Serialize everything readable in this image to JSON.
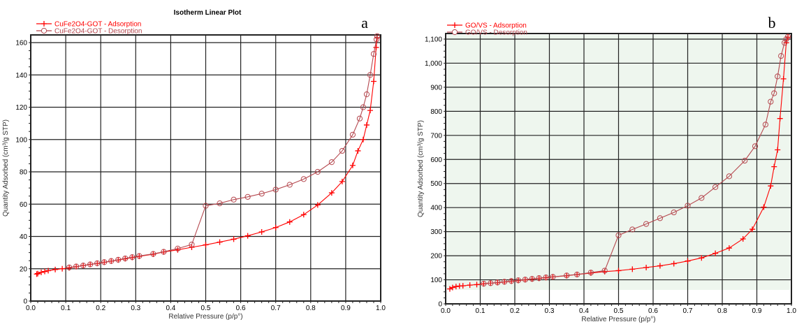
{
  "chart_data": [
    {
      "type": "line",
      "panel_label": "a",
      "title": "Isotherm Linear Plot",
      "xlabel": "Relative Pressure (p/p°)",
      "ylabel": "Quantity Adsorbed (cm³/g STP)",
      "xlim": [
        0,
        1.0
      ],
      "ylim": [
        0,
        165
      ],
      "xticks": [
        0,
        0.1,
        0.2,
        0.3,
        0.4,
        0.5,
        0.6,
        0.7,
        0.8,
        0.9,
        1.0
      ],
      "xtick_labels": [
        "0.0",
        "0.1",
        "0.2",
        "0.3",
        "0.4",
        "0.5",
        "0.6",
        "0.7",
        "0.8",
        "0.9",
        "1.0"
      ],
      "yticks": [
        0,
        20,
        40,
        60,
        80,
        100,
        120,
        140,
        160
      ],
      "ytick_labels": [
        "0",
        "20",
        "40",
        "60",
        "80",
        "100",
        "120",
        "140",
        "160"
      ],
      "grid": true,
      "background": "#ffffff",
      "legend_position": "top-left",
      "series": [
        {
          "name": "CuFe2O4-GOT - Adsorption",
          "marker": "plus",
          "color": "#ff0000",
          "x": [
            0.017,
            0.02,
            0.03,
            0.04,
            0.05,
            0.07,
            0.09,
            0.11,
            0.13,
            0.15,
            0.17,
            0.19,
            0.21,
            0.23,
            0.25,
            0.27,
            0.29,
            0.31,
            0.35,
            0.38,
            0.42,
            0.46,
            0.5,
            0.54,
            0.58,
            0.62,
            0.66,
            0.7,
            0.74,
            0.78,
            0.82,
            0.86,
            0.89,
            0.92,
            0.935,
            0.95,
            0.96,
            0.97,
            0.98,
            0.987,
            0.99
          ],
          "y": [
            16.7,
            17,
            17.8,
            18.3,
            18.8,
            19.5,
            20,
            20.6,
            21.3,
            22,
            22.7,
            23.3,
            24,
            24.7,
            25.4,
            26.2,
            27,
            27.7,
            29,
            30.4,
            31.7,
            33.3,
            34.8,
            36.5,
            38.3,
            40.4,
            42.8,
            45.5,
            49,
            53.5,
            59.5,
            67,
            74,
            84,
            93,
            100,
            109,
            118,
            136,
            157,
            163
          ]
        },
        {
          "name": "CuFe2O4-GOT - Desorption",
          "marker": "circle",
          "color": "#b5484f",
          "x": [
            0.99,
            0.988,
            0.98,
            0.97,
            0.96,
            0.95,
            0.94,
            0.92,
            0.89,
            0.86,
            0.82,
            0.78,
            0.74,
            0.7,
            0.66,
            0.62,
            0.58,
            0.54,
            0.5,
            0.46,
            0.42,
            0.38,
            0.35,
            0.31,
            0.29,
            0.27,
            0.25,
            0.23,
            0.21,
            0.19,
            0.17,
            0.15,
            0.13,
            0.11
          ],
          "y": [
            164,
            162,
            153,
            140,
            128,
            120,
            113,
            103,
            93,
            86,
            80,
            75.5,
            72,
            69,
            66.5,
            64.5,
            62.8,
            60.5,
            59,
            35,
            32.5,
            30.5,
            29.2,
            27.9,
            27.2,
            26.4,
            25.6,
            24.8,
            24.1,
            23.4,
            22.7,
            22,
            21.4,
            20.8
          ]
        }
      ]
    },
    {
      "type": "line",
      "panel_label": "b",
      "title": "",
      "xlabel": "Relative Pressure (p/p°)",
      "ylabel": "Quantity Adsorbed (cm³/g STP)",
      "xlim": [
        0,
        1.0
      ],
      "ylim": [
        0,
        1150
      ],
      "xticks": [
        0,
        0.1,
        0.2,
        0.3,
        0.4,
        0.5,
        0.6,
        0.7,
        0.8,
        0.9,
        1.0
      ],
      "xtick_labels": [
        "0.0",
        "0.1",
        "0.2",
        "0.3",
        "0.4",
        "0.5",
        "0.6",
        "0.7",
        "0.8",
        "0.9",
        "1.0"
      ],
      "yticks": [
        0,
        100,
        200,
        300,
        400,
        500,
        600,
        700,
        800,
        900,
        1000,
        1100
      ],
      "ytick_labels": [
        "0",
        "100",
        "200",
        "300",
        "400",
        "500",
        "600",
        "700",
        "800",
        "900",
        "1,000",
        "1,100"
      ],
      "grid": true,
      "background": "#eef6ee",
      "legend_position": "top-left",
      "series": [
        {
          "name": "GO/VS - Adsorption",
          "marker": "plus",
          "color": "#ff0000",
          "x": [
            0.012,
            0.02,
            0.03,
            0.04,
            0.05,
            0.07,
            0.09,
            0.11,
            0.13,
            0.15,
            0.17,
            0.19,
            0.21,
            0.23,
            0.25,
            0.27,
            0.29,
            0.31,
            0.35,
            0.38,
            0.42,
            0.46,
            0.5,
            0.54,
            0.58,
            0.62,
            0.66,
            0.7,
            0.74,
            0.78,
            0.82,
            0.86,
            0.887,
            0.92,
            0.94,
            0.95,
            0.96,
            0.967,
            0.977,
            0.985,
            0.99
          ],
          "y": [
            62,
            68,
            72,
            74,
            75,
            78,
            80,
            83,
            86,
            88,
            91,
            94,
            97,
            100,
            103,
            106,
            109,
            112,
            117,
            122,
            128,
            134,
            138,
            144,
            151,
            158,
            167,
            178,
            191,
            210,
            232,
            270,
            310,
            402,
            490,
            570,
            640,
            770,
            935,
            1085,
            1108
          ]
        },
        {
          "name": "GO/VS - Desorption",
          "marker": "circle",
          "color": "#b5484f",
          "x": [
            0.99,
            0.985,
            0.98,
            0.97,
            0.96,
            0.95,
            0.94,
            0.925,
            0.895,
            0.865,
            0.82,
            0.78,
            0.74,
            0.7,
            0.66,
            0.62,
            0.58,
            0.54,
            0.5,
            0.46,
            0.42,
            0.38,
            0.35,
            0.31,
            0.29,
            0.27,
            0.25,
            0.23,
            0.21,
            0.19,
            0.17,
            0.15,
            0.13,
            0.11
          ],
          "y": [
            1110,
            1100,
            1085,
            1030,
            945,
            875,
            840,
            745,
            655,
            595,
            530,
            485,
            440,
            408,
            380,
            356,
            332,
            309,
            285,
            138,
            130,
            122,
            118,
            112,
            110,
            107,
            104,
            101,
            98,
            95,
            92,
            89,
            86,
            84
          ]
        }
      ]
    }
  ]
}
